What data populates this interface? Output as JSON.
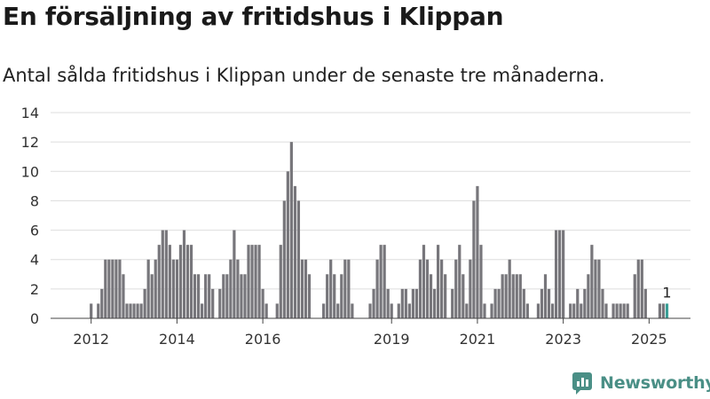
{
  "header": {
    "title": "En försäljning av fritidshus i Klippan",
    "subtitle": "Antal sålda fritidshus i Klippan under de senaste tre månaderna."
  },
  "brand": {
    "name": "Newsworthy"
  },
  "colors": {
    "bar": "#77767b",
    "highlight": "#3a9f96",
    "grid": "#dddddd",
    "brand": "#4a8f86"
  },
  "chart_data": {
    "type": "bar",
    "title": "En försäljning av fritidshus i Klippan",
    "subtitle": "Antal sålda fritidshus i Klippan under de senaste tre månaderna.",
    "ylim": [
      0,
      14
    ],
    "yticks": [
      0,
      2,
      4,
      6,
      8,
      10,
      12,
      14
    ],
    "grid": true,
    "start_month": "2011-10",
    "x_tick_labels": [
      {
        "label": "2012",
        "month": "2012-01"
      },
      {
        "label": "2014",
        "month": "2014-01"
      },
      {
        "label": "2016",
        "month": "2016-01"
      },
      {
        "label": "2019",
        "month": "2019-01"
      },
      {
        "label": "2021",
        "month": "2021-01"
      },
      {
        "label": "2023",
        "month": "2023-01"
      },
      {
        "label": "2025",
        "month": "2025-01"
      }
    ],
    "values": [
      0,
      0,
      0,
      1,
      0,
      1,
      2,
      4,
      4,
      4,
      4,
      4,
      3,
      1,
      1,
      1,
      1,
      1,
      2,
      4,
      3,
      4,
      5,
      6,
      6,
      5,
      4,
      4,
      5,
      6,
      5,
      5,
      3,
      3,
      1,
      3,
      3,
      2,
      0,
      2,
      3,
      3,
      4,
      6,
      4,
      3,
      3,
      5,
      5,
      5,
      5,
      2,
      1,
      0,
      0,
      1,
      5,
      8,
      10,
      12,
      9,
      8,
      4,
      4,
      3,
      0,
      0,
      0,
      1,
      3,
      4,
      3,
      1,
      3,
      4,
      4,
      1,
      0,
      0,
      0,
      0,
      1,
      2,
      4,
      5,
      5,
      2,
      1,
      0,
      1,
      2,
      2,
      1,
      2,
      2,
      4,
      5,
      4,
      3,
      2,
      5,
      4,
      3,
      0,
      2,
      4,
      5,
      3,
      1,
      4,
      8,
      9,
      5,
      1,
      0,
      1,
      2,
      2,
      3,
      3,
      4,
      3,
      3,
      3,
      2,
      1,
      0,
      0,
      1,
      2,
      3,
      2,
      1,
      6,
      6,
      6,
      0,
      1,
      1,
      2,
      1,
      2,
      3,
      5,
      4,
      4,
      2,
      1,
      0,
      1,
      1,
      1,
      1,
      1,
      0,
      3,
      4,
      4,
      2,
      0,
      0,
      0,
      1,
      1,
      1
    ],
    "highlight_last": true,
    "annotation": "1"
  }
}
